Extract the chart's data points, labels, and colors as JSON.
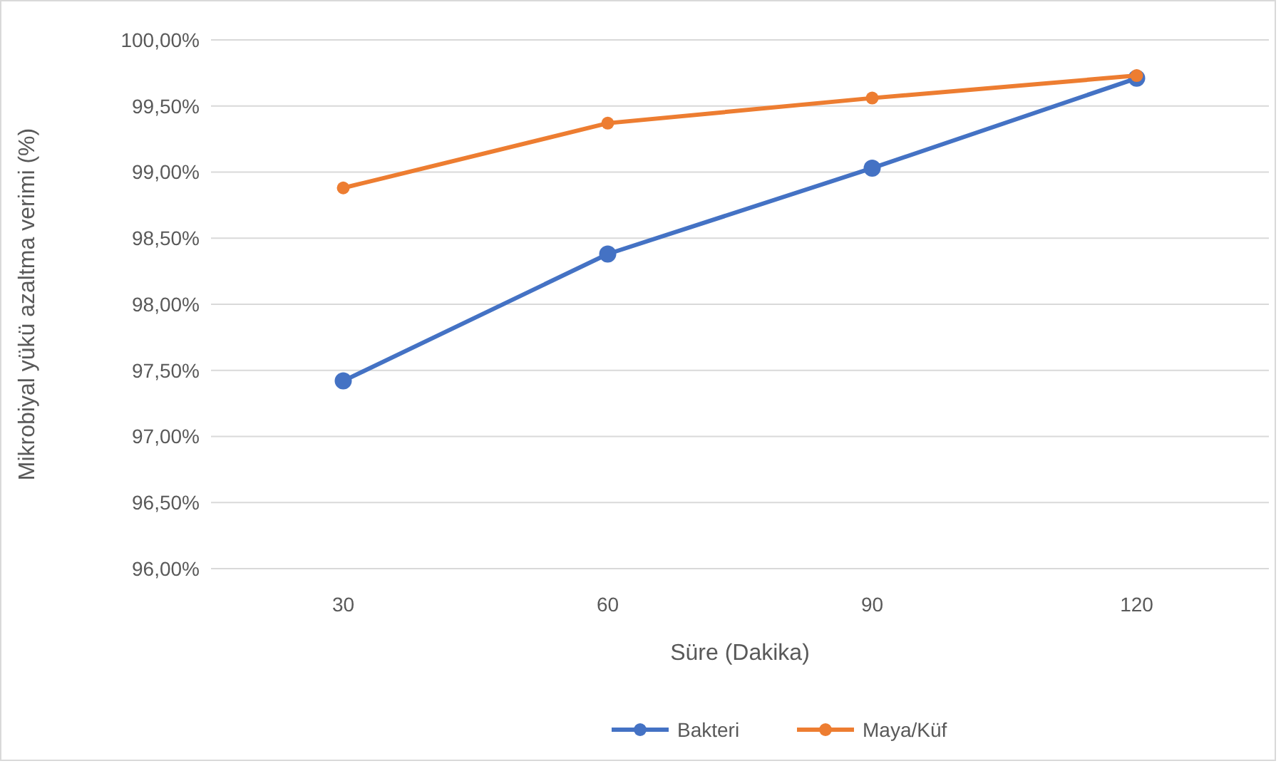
{
  "chart_data": {
    "type": "line",
    "xlabel": "Süre (Dakika)",
    "ylabel": "Mikrobiyal yükü azaltma verimi (%)",
    "categories": [
      "30",
      "60",
      "90",
      "120"
    ],
    "series": [
      {
        "name": "Bakteri",
        "color": "#4472c4",
        "values": [
          97.42,
          98.38,
          99.03,
          99.71
        ]
      },
      {
        "name": "Maya/Küf",
        "color": "#ed7d31",
        "values": [
          98.88,
          99.37,
          99.56,
          99.73
        ]
      }
    ],
    "ylim": [
      96,
      100
    ],
    "yticks": [
      {
        "value": 96,
        "label": "96,00%"
      },
      {
        "value": 96.5,
        "label": "96,50%"
      },
      {
        "value": 97,
        "label": "97,00%"
      },
      {
        "value": 97.5,
        "label": "97,50%"
      },
      {
        "value": 98,
        "label": "98,00%"
      },
      {
        "value": 98.5,
        "label": "98,50%"
      },
      {
        "value": 99,
        "label": "99,00%"
      },
      {
        "value": 99.5,
        "label": "99,50%"
      },
      {
        "value": 100,
        "label": "100,00%"
      }
    ],
    "grid": "y",
    "legend": "bottom",
    "marker": "circle",
    "line_style": "solid"
  }
}
